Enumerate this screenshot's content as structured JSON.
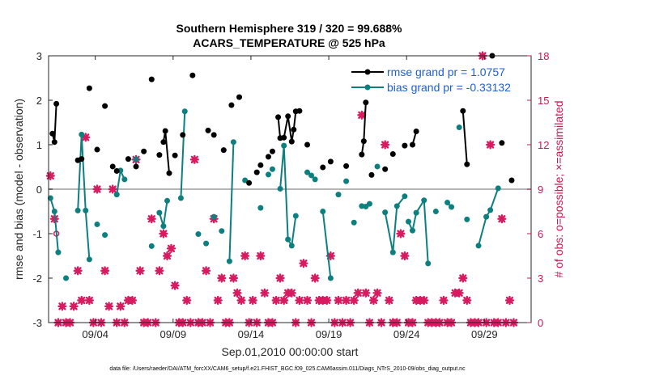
{
  "chart_data": {
    "type": "line",
    "title": "Southern Hemisphere 319 / 320 = 99.688%",
    "subtitle": "ACARS_TEMPERATURE @ 525 hPa",
    "xlabel": "Sep.01,2010 00:00:00 start",
    "ylabel": "rmse and bias (model - observation)",
    "y2label": "# of obs: o=possible; ×=assimilated",
    "footer": "data file: /Users/raeder/DAI/ATM_forcXX/CAM6_setup/f.e21.FHIST_BGC.f09_025.CAM6assim.011/Diags_NTrS_2010-09/obs_diag_output.nc",
    "xlim": [
      1.0,
      32.0
    ],
    "ylim": [
      -3,
      3
    ],
    "y2lim": [
      0,
      18
    ],
    "x_ticks": [
      4,
      9,
      14,
      19,
      24,
      29
    ],
    "x_tick_labels": [
      "09/04",
      "09/09",
      "09/14",
      "09/19",
      "09/24",
      "09/29"
    ],
    "y_ticks": [
      -3,
      -2,
      -1,
      0,
      1,
      2,
      3
    ],
    "y_tick_labels": [
      "-3",
      "-2",
      "-1",
      "0",
      "1",
      "2",
      "3"
    ],
    "y2_ticks": [
      0,
      3,
      6,
      9,
      12,
      15,
      18
    ],
    "y2_tick_labels": [
      "0",
      "3",
      "6",
      "9",
      "12",
      "15",
      "18"
    ],
    "legend": {
      "placement": "top-right",
      "entries": [
        "rmse grand pr = 1.0757",
        "bias grand pr = -0.33132"
      ]
    },
    "colors": {
      "rmse": "#000000",
      "bias": "#0d7f7f",
      "obs": "#d81b60",
      "zero_line": "#b5b5b5"
    },
    "series": [
      {
        "name": "rmse grand pr = 1.0757",
        "color": "#000000",
        "points": [
          [
            1.25,
            1.25
          ],
          [
            1.38,
            1.06
          ],
          [
            1.5,
            1.92
          ],
          [
            2.62,
            null
          ],
          [
            2.88,
            0.65
          ],
          [
            3.12,
            0.68
          ],
          [
            3.25,
            null
          ],
          [
            3.62,
            2.27
          ],
          [
            4.12,
            0.89
          ],
          [
            4.62,
            1.87
          ],
          [
            5.12,
            0.51
          ],
          [
            5.38,
            0.41
          ],
          [
            6.12,
            0.68
          ],
          [
            6.62,
            0.51
          ],
          [
            7.12,
            0.85
          ],
          [
            7.62,
            2.47
          ],
          [
            8.12,
            0.77
          ],
          [
            8.38,
            1.06
          ],
          [
            8.5,
            1.31
          ],
          [
            8.75,
            0.36
          ],
          [
            9.12,
            0.76
          ],
          [
            9.62,
            1.22
          ],
          [
            10.25,
            2.56
          ],
          [
            11.25,
            1.32
          ],
          [
            11.62,
            1.22
          ],
          [
            12.25,
            0.88
          ],
          [
            12.75,
            1.89
          ],
          [
            13.25,
            2.07
          ],
          [
            13.88,
            0.14
          ],
          [
            14.38,
            0.38
          ],
          [
            14.62,
            0.54
          ],
          [
            15.12,
            0.73
          ],
          [
            15.38,
            0.85
          ],
          [
            15.75,
            1.62
          ],
          [
            15.88,
            1.15
          ],
          [
            16.12,
            1.16
          ],
          [
            16.38,
            1.64
          ],
          [
            16.62,
            1.07
          ],
          [
            16.75,
            1.34
          ],
          [
            16.88,
            1.75
          ],
          [
            17.12,
            1.76
          ],
          [
            17.62,
            1.0
          ],
          [
            18.62,
            0.49
          ],
          [
            19.12,
            0.62
          ],
          [
            20.12,
            0.52
          ],
          [
            21.12,
            0.78
          ],
          [
            21.25,
            1.08
          ],
          [
            21.38,
            1.95
          ],
          [
            21.75,
            0.32
          ],
          [
            22.62,
            0.45
          ],
          [
            23.12,
            0.79
          ],
          [
            23.88,
            0.98
          ],
          [
            24.38,
            1.0
          ],
          [
            24.62,
            1.3
          ],
          [
            27.62,
            1.76
          ],
          [
            27.88,
            0.56
          ],
          [
            29.5,
            3.0
          ],
          [
            30.12,
            1.04
          ],
          [
            30.75,
            0.2
          ]
        ],
        "segments": [
          [
            1.25,
            1.38,
            1.5
          ],
          [
            8.38,
            8.5,
            8.75
          ],
          [
            15.75,
            15.88,
            16.12,
            16.38,
            16.62,
            16.75,
            16.88,
            17.12
          ],
          [
            21.12,
            21.25,
            21.38
          ],
          [
            24.38,
            24.62
          ],
          [
            27.62,
            27.88
          ]
        ]
      },
      {
        "name": "bias grand pr = -0.33132",
        "color": "#0d7f7f",
        "points": [
          [
            1.12,
            -0.2
          ],
          [
            1.38,
            -0.5
          ],
          [
            1.62,
            -1.42
          ],
          [
            2.12,
            -2.0
          ],
          [
            2.88,
            -0.48
          ],
          [
            3.12,
            1.23
          ],
          [
            3.38,
            -0.48
          ],
          [
            3.62,
            -1.58
          ],
          [
            4.12,
            -0.79
          ],
          [
            4.62,
            -1.03
          ],
          [
            5.38,
            -0.12
          ],
          [
            5.62,
            0.42
          ],
          [
            5.88,
            0.22
          ],
          [
            6.62,
            0.67
          ],
          [
            7.62,
            -1.28
          ],
          [
            8.12,
            -0.53
          ],
          [
            8.38,
            -0.83
          ],
          [
            8.62,
            -0.26
          ],
          [
            9.5,
            -0.2
          ],
          [
            9.75,
            1.75
          ],
          [
            10.62,
            -1.01
          ],
          [
            11.12,
            -1.22
          ],
          [
            11.62,
            -0.62
          ],
          [
            12.12,
            -0.94
          ],
          [
            12.62,
            -1.62
          ],
          [
            12.88,
            1.06
          ],
          [
            13.62,
            0.2
          ],
          [
            14.62,
            -0.42
          ],
          [
            15.12,
            0.33
          ],
          [
            15.38,
            0.45
          ],
          [
            15.88,
            0.01
          ],
          [
            16.12,
            0.98
          ],
          [
            16.38,
            -1.13
          ],
          [
            16.62,
            -1.27
          ],
          [
            16.88,
            -0.6
          ],
          [
            17.62,
            0.38
          ],
          [
            17.88,
            0.31
          ],
          [
            18.12,
            0.22
          ],
          [
            18.62,
            -0.5
          ],
          [
            19.12,
            -2.0
          ],
          [
            19.62,
            -0.12
          ],
          [
            20.12,
            0.18
          ],
          [
            20.62,
            -0.75
          ],
          [
            21.12,
            -0.38
          ],
          [
            21.38,
            -0.39
          ],
          [
            21.62,
            -0.33
          ],
          [
            22.12,
            0.51
          ],
          [
            22.62,
            -0.52
          ],
          [
            23.12,
            -1.42
          ],
          [
            23.38,
            -0.38
          ],
          [
            23.88,
            -0.16
          ],
          [
            24.12,
            -0.73
          ],
          [
            24.38,
            -0.93
          ],
          [
            24.62,
            -0.53
          ],
          [
            25.12,
            -0.25
          ],
          [
            25.38,
            -1.67
          ],
          [
            25.88,
            -0.5
          ],
          [
            26.62,
            -0.3
          ],
          [
            26.88,
            -0.4
          ],
          [
            27.38,
            1.39
          ],
          [
            27.88,
            -0.68
          ],
          [
            28.62,
            -1.27
          ],
          [
            29.12,
            -0.62
          ],
          [
            29.38,
            -0.47
          ],
          [
            29.88,
            0.02
          ]
        ],
        "segments": [
          [
            1.12,
            1.38,
            1.62
          ],
          [
            2.88,
            3.12,
            3.38,
            3.62
          ],
          [
            5.38,
            5.62,
            5.88
          ],
          [
            8.12,
            8.38,
            8.62
          ],
          [
            9.5,
            9.75
          ],
          [
            12.62,
            12.88
          ],
          [
            15.88,
            16.12,
            16.38,
            16.62,
            16.88
          ],
          [
            18.62,
            19.12
          ],
          [
            21.12,
            21.38,
            21.62
          ],
          [
            22.62,
            23.12,
            23.38,
            23.88
          ],
          [
            24.12,
            24.38,
            24.62,
            25.12,
            25.38
          ],
          [
            26.62,
            26.88
          ],
          [
            28.62,
            29.12,
            29.38,
            29.88
          ]
        ]
      }
    ],
    "obs_assimilated": [
      [
        1.12,
        9.9
      ],
      [
        1.38,
        7.0
      ],
      [
        1.62,
        0
      ],
      [
        1.88,
        1.1
      ],
      [
        2.12,
        0
      ],
      [
        2.38,
        0
      ],
      [
        2.62,
        1.1
      ],
      [
        2.88,
        3.5
      ],
      [
        3.12,
        1.5
      ],
      [
        3.38,
        12.5
      ],
      [
        3.62,
        1.5
      ],
      [
        3.88,
        0
      ],
      [
        4.12,
        9.0
      ],
      [
        4.38,
        0
      ],
      [
        4.62,
        3.5
      ],
      [
        4.88,
        1.1
      ],
      [
        5.12,
        9.0
      ],
      [
        5.38,
        0
      ],
      [
        5.62,
        1.1
      ],
      [
        5.88,
        0
      ],
      [
        6.12,
        1.5
      ],
      [
        6.38,
        1.5
      ],
      [
        6.62,
        11.0
      ],
      [
        6.88,
        3.5
      ],
      [
        7.12,
        0
      ],
      [
        7.38,
        0
      ],
      [
        7.62,
        7.0
      ],
      [
        7.88,
        0
      ],
      [
        8.12,
        3.5
      ],
      [
        8.38,
        6.0
      ],
      [
        8.62,
        4.5
      ],
      [
        8.88,
        5.0
      ],
      [
        9.12,
        2.5
      ],
      [
        9.38,
        0
      ],
      [
        9.62,
        0
      ],
      [
        9.88,
        1.5
      ],
      [
        10.12,
        0
      ],
      [
        10.38,
        11.0
      ],
      [
        10.62,
        0
      ],
      [
        10.88,
        0
      ],
      [
        11.12,
        3.5
      ],
      [
        11.38,
        0
      ],
      [
        11.62,
        7.0
      ],
      [
        11.88,
        1.5
      ],
      [
        12.12,
        3.0
      ],
      [
        12.38,
        0
      ],
      [
        12.62,
        0
      ],
      [
        12.88,
        3.0
      ],
      [
        13.12,
        2.0
      ],
      [
        13.38,
        1.5
      ],
      [
        13.62,
        4.5
      ],
      [
        13.88,
        0
      ],
      [
        14.12,
        1.5
      ],
      [
        14.38,
        0
      ],
      [
        14.62,
        4.5
      ],
      [
        14.88,
        2.0
      ],
      [
        15.12,
        0
      ],
      [
        15.38,
        0
      ],
      [
        15.62,
        1.5
      ],
      [
        15.88,
        3.0
      ],
      [
        16.12,
        1.5
      ],
      [
        16.38,
        2.0
      ],
      [
        16.62,
        2.0
      ],
      [
        16.88,
        0
      ],
      [
        17.12,
        1.5
      ],
      [
        17.38,
        4.0
      ],
      [
        17.62,
        1.5
      ],
      [
        17.88,
        0
      ],
      [
        18.12,
        3.0
      ],
      [
        18.38,
        1.5
      ],
      [
        18.62,
        1.5
      ],
      [
        18.88,
        1.5
      ],
      [
        19.12,
        4.5
      ],
      [
        19.38,
        0
      ],
      [
        19.62,
        1.5
      ],
      [
        19.88,
        0
      ],
      [
        20.12,
        1.5
      ],
      [
        20.38,
        0
      ],
      [
        20.62,
        1.5
      ],
      [
        20.88,
        2.0
      ],
      [
        21.12,
        14.0
      ],
      [
        21.38,
        2.0
      ],
      [
        21.62,
        0
      ],
      [
        21.88,
        1.5
      ],
      [
        22.12,
        2.0
      ],
      [
        22.38,
        0
      ],
      [
        22.62,
        12.0
      ],
      [
        22.88,
        1.5
      ],
      [
        23.12,
        0
      ],
      [
        23.38,
        0
      ],
      [
        23.62,
        6.0
      ],
      [
        23.88,
        4.5
      ],
      [
        24.12,
        0
      ],
      [
        24.38,
        0
      ],
      [
        24.62,
        1.5
      ],
      [
        24.88,
        1.5
      ],
      [
        25.12,
        1.5
      ],
      [
        25.38,
        0
      ],
      [
        25.62,
        0
      ],
      [
        25.88,
        0
      ],
      [
        26.12,
        0
      ],
      [
        26.38,
        1.5
      ],
      [
        26.62,
        0
      ],
      [
        26.88,
        0
      ],
      [
        27.12,
        2.0
      ],
      [
        27.38,
        2.0
      ],
      [
        27.62,
        3.0
      ],
      [
        27.88,
        1.5
      ],
      [
        28.12,
        0
      ],
      [
        28.38,
        0
      ],
      [
        28.62,
        0
      ],
      [
        28.88,
        18.0
      ],
      [
        29.12,
        0
      ],
      [
        29.38,
        12.0
      ],
      [
        29.62,
        0
      ],
      [
        29.88,
        0
      ],
      [
        30.12,
        7.0
      ],
      [
        30.38,
        0
      ],
      [
        30.62,
        1.5
      ],
      [
        30.88,
        0
      ]
    ],
    "obs_possible": [
      [
        1.5,
        6.0
      ]
    ]
  }
}
